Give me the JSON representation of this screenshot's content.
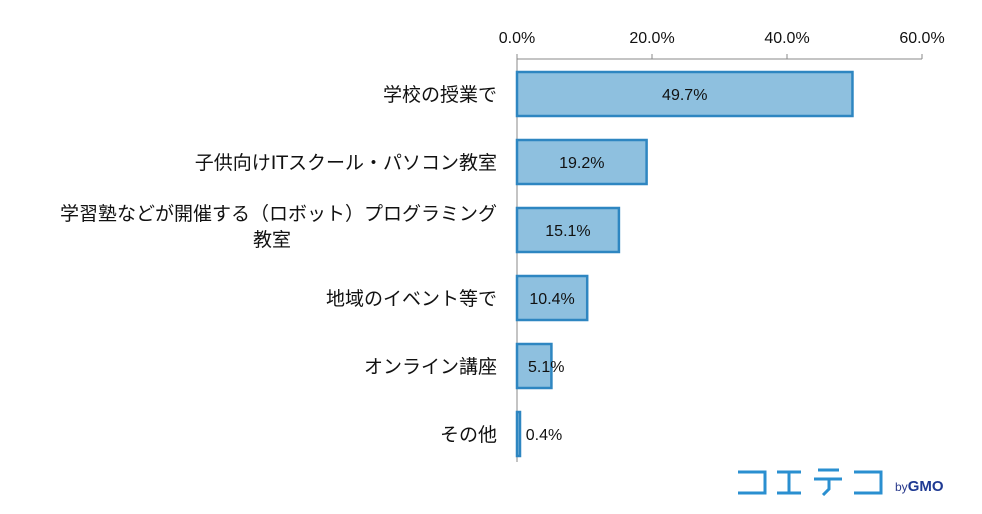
{
  "chart_data": {
    "type": "bar",
    "orientation": "horizontal",
    "categories": [
      [
        "学校の授業で"
      ],
      [
        "子供向けITスクール・パソコン教室"
      ],
      [
        "学習塾などが開催する（ロボット）プログラミング",
        "教室"
      ],
      [
        "地域のイベント等で"
      ],
      [
        "オンライン講座"
      ],
      [
        "その他"
      ]
    ],
    "values": [
      49.7,
      19.2,
      15.1,
      10.4,
      5.1,
      0.4
    ],
    "value_labels": [
      "49.7%",
      "19.2%",
      "15.1%",
      "10.4%",
      "5.1%",
      "0.4%"
    ],
    "xlim": [
      0,
      60
    ],
    "x_ticks": [
      0,
      20,
      40,
      60
    ],
    "x_tick_labels": [
      "0.0%",
      "20.0%",
      "40.0%",
      "60.0%"
    ],
    "axis_position": "top",
    "grid": false,
    "colors": {
      "bar_fill": "#8ec0df",
      "bar_stroke": "#2e86c1",
      "axis": "#888888"
    }
  },
  "brand": {
    "logo_text": "コエテコ",
    "by": "by",
    "gmo": "GMO"
  }
}
